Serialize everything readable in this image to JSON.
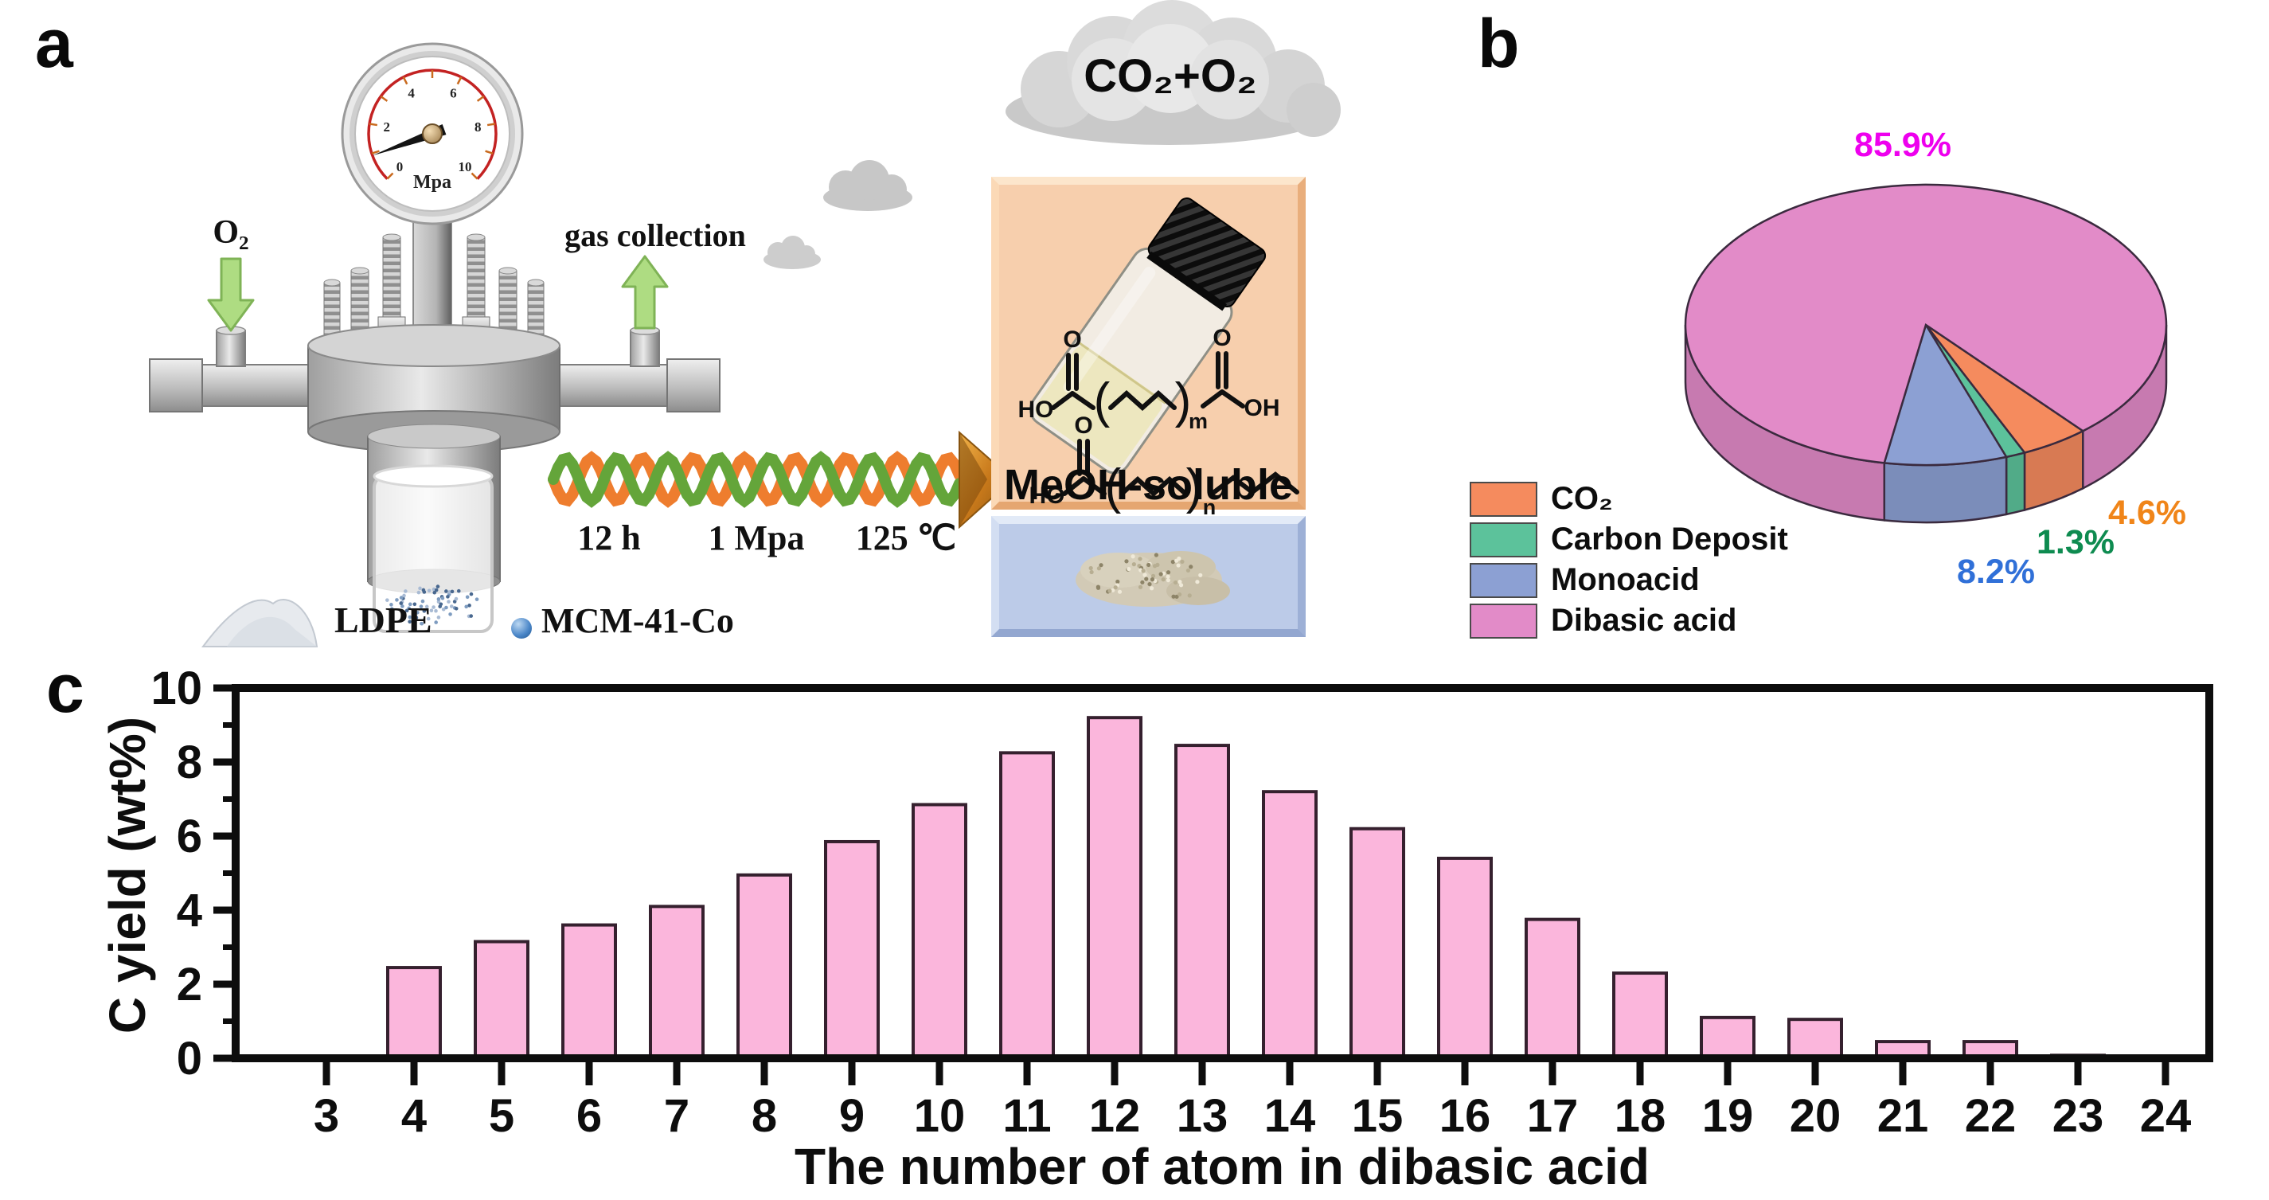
{
  "panels": {
    "a": {
      "label": "a",
      "gauge": {
        "unit": "Mpa",
        "tick_labels": [
          "0",
          "2",
          "4",
          "6",
          "8",
          "10"
        ]
      },
      "o2_label": "O₂",
      "gas_collection_label": "gas collection",
      "conditions": [
        "12 h",
        "1 Mpa",
        "125 ℃"
      ],
      "cloud_label": "CO₂+O₂",
      "meoh_label": "MeOH-soluble",
      "ldpe_label": "LDPE",
      "catalyst_label": "MCM-41-Co",
      "structures": {
        "hydroxyl_left": "HO",
        "hydroxyl_right": "OH",
        "oxygen": "O",
        "sub_m": "m",
        "sub_n": "n"
      }
    },
    "b": {
      "label": "b",
      "slices": [
        {
          "name": "CO₂",
          "label": "4.6%",
          "label_color": "#F08519"
        },
        {
          "name": "Carbon Deposit",
          "label": "1.3%",
          "label_color": "#0E8B50"
        },
        {
          "name": "Monoacid",
          "label": "8.2%",
          "label_color": "#3070D8"
        },
        {
          "name": "Dibasic acid",
          "label": "85.9%",
          "label_color": "#EE00EE"
        }
      ],
      "legend": [
        {
          "label": "CO₂",
          "color": "#F58B5E"
        },
        {
          "label": "Carbon Deposit",
          "color": "#5CC29B"
        },
        {
          "label": "Monoacid",
          "color": "#8CA0D3"
        },
        {
          "label": "Dibasic acid",
          "color": "#E28BC8"
        }
      ]
    },
    "c": {
      "label": "c",
      "ylabel": "C yield (wt%)",
      "xlabel": "The number of atom in dibasic acid"
    }
  },
  "chart_data": [
    {
      "type": "pie",
      "style": "3d",
      "labels": [
        "CO₂",
        "Carbon Deposit",
        "Monoacid",
        "Dibasic acid"
      ],
      "values": [
        4.6,
        1.3,
        8.2,
        85.9
      ],
      "colors": [
        "#F58B5E",
        "#5CC29B",
        "#8CA0D3",
        "#E28BC8"
      ],
      "pct_labels": [
        "4.6%",
        "1.3%",
        "8.2%",
        "85.9%"
      ],
      "legend_position": "bottom-left"
    },
    {
      "type": "bar",
      "title": "",
      "xlabel": "The number of atom in dibasic acid",
      "ylabel": "C yield (wt%)",
      "categories": [
        "3",
        "4",
        "5",
        "6",
        "7",
        "8",
        "9",
        "10",
        "11",
        "12",
        "13",
        "14",
        "15",
        "16",
        "17",
        "18",
        "19",
        "20",
        "21",
        "22",
        "23",
        "24"
      ],
      "values": [
        0,
        2.45,
        3.15,
        3.6,
        4.1,
        4.95,
        5.85,
        6.85,
        8.25,
        9.2,
        8.45,
        7.2,
        6.2,
        5.4,
        3.75,
        2.3,
        1.1,
        1.05,
        0.45,
        0.45,
        0.08,
        0
      ],
      "ylim": [
        0,
        10
      ],
      "yticks": [
        0,
        2,
        4,
        6,
        8,
        10
      ],
      "bar_color": "#FBB6DC",
      "bar_edge": "#35202E",
      "grid": false
    }
  ]
}
